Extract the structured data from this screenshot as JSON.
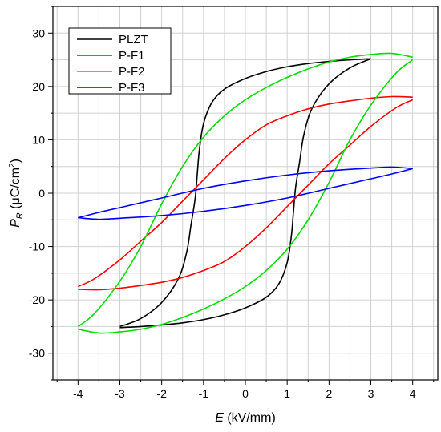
{
  "chart_data": {
    "type": "line",
    "xlabel": {
      "italic": "E",
      "rest": " (kV/mm)"
    },
    "ylabel": {
      "italic": "P",
      "sub": "R",
      "rest": " (μC/cm",
      "sup": "2",
      "close": ")"
    },
    "xlim": [
      -4.6,
      4.6
    ],
    "ylim": [
      -35,
      35
    ],
    "xticks": [
      -4,
      -3,
      -2,
      -1,
      0,
      1,
      2,
      3,
      4
    ],
    "yticks": [
      -30,
      -20,
      -10,
      0,
      10,
      20,
      30
    ],
    "grid": true,
    "legend_position": "top-left",
    "series": [
      {
        "name": "PLZT",
        "color": "#000000",
        "upper": {
          "x": [
            -3.0,
            -2.5,
            -2.0,
            -1.6,
            -1.4,
            -1.3,
            -1.2,
            -1.15,
            -1.1,
            -1.0,
            -0.8,
            -0.5,
            0.0,
            0.5,
            1.0,
            1.5,
            2.0,
            2.5,
            3.0
          ],
          "y": [
            -25.0,
            -23.5,
            -20.5,
            -16.0,
            -11.0,
            -6.0,
            -1.0,
            3.5,
            8.0,
            13.0,
            17.0,
            19.5,
            21.5,
            22.8,
            23.7,
            24.3,
            24.7,
            25.0,
            25.2
          ]
        },
        "lower": {
          "x": [
            3.0,
            2.5,
            2.0,
            1.6,
            1.4,
            1.3,
            1.2,
            1.15,
            1.1,
            1.0,
            0.8,
            0.5,
            0.0,
            -0.5,
            -1.0,
            -1.5,
            -2.0,
            -2.5,
            -3.0
          ],
          "y": [
            25.2,
            23.5,
            20.5,
            16.0,
            11.0,
            6.0,
            1.0,
            -3.5,
            -8.0,
            -13.0,
            -17.0,
            -19.5,
            -21.5,
            -22.8,
            -23.7,
            -24.3,
            -24.7,
            -25.0,
            -25.2
          ]
        }
      },
      {
        "name": "P-F1",
        "color": "#ff0000",
        "upper": {
          "x": [
            -4.0,
            -3.6,
            -3.0,
            -2.5,
            -2.0,
            -1.5,
            -1.0,
            -0.5,
            0.0,
            0.5,
            1.0,
            1.5,
            2.0,
            2.5,
            3.0,
            3.5,
            4.0
          ],
          "y": [
            -17.5,
            -16.0,
            -12.5,
            -9.0,
            -5.5,
            -1.5,
            2.5,
            6.5,
            10.0,
            12.8,
            14.5,
            15.8,
            16.7,
            17.3,
            17.8,
            18.1,
            18.0
          ]
        },
        "lower": {
          "x": [
            4.0,
            3.6,
            3.0,
            2.5,
            2.0,
            1.5,
            1.0,
            0.5,
            0.0,
            -0.5,
            -1.0,
            -1.5,
            -2.0,
            -2.5,
            -3.0,
            -3.5,
            -4.0
          ],
          "y": [
            17.5,
            16.0,
            12.5,
            9.0,
            5.5,
            1.5,
            -2.5,
            -6.5,
            -10.0,
            -12.8,
            -14.5,
            -15.8,
            -16.7,
            -17.3,
            -17.8,
            -18.1,
            -18.0
          ]
        }
      },
      {
        "name": "P-F2",
        "color": "#00dd00",
        "upper": {
          "x": [
            -4.0,
            -3.6,
            -3.0,
            -2.5,
            -2.0,
            -1.5,
            -1.0,
            -0.5,
            0.0,
            0.5,
            1.0,
            1.5,
            2.0,
            2.5,
            3.0,
            3.5,
            4.0
          ],
          "y": [
            -25.0,
            -22.5,
            -16.5,
            -10.0,
            -2.0,
            5.0,
            10.5,
            14.5,
            17.5,
            19.8,
            21.7,
            23.3,
            24.6,
            25.5,
            26.0,
            26.2,
            25.5
          ]
        },
        "lower": {
          "x": [
            4.0,
            3.6,
            3.0,
            2.5,
            2.0,
            1.5,
            1.0,
            0.5,
            0.0,
            -0.5,
            -1.0,
            -1.5,
            -2.0,
            -2.5,
            -3.0,
            -3.5,
            -4.0
          ],
          "y": [
            25.0,
            22.5,
            16.5,
            10.0,
            2.0,
            -5.0,
            -10.5,
            -14.5,
            -17.5,
            -19.8,
            -21.7,
            -23.3,
            -24.6,
            -25.5,
            -26.0,
            -26.2,
            -25.5
          ]
        }
      },
      {
        "name": "P-F3",
        "color": "#0000ff",
        "upper": {
          "x": [
            -4.0,
            -3.5,
            -3.0,
            -2.0,
            -1.0,
            0.0,
            1.0,
            2.0,
            3.0,
            3.5,
            4.0
          ],
          "y": [
            -4.6,
            -3.6,
            -2.7,
            -0.9,
            0.9,
            2.3,
            3.4,
            4.2,
            4.7,
            4.9,
            4.6
          ]
        },
        "lower": {
          "x": [
            4.0,
            3.5,
            3.0,
            2.0,
            1.0,
            0.0,
            -1.0,
            -2.0,
            -3.0,
            -3.5,
            -4.0
          ],
          "y": [
            4.6,
            3.6,
            2.7,
            0.9,
            -0.9,
            -2.3,
            -3.4,
            -4.2,
            -4.7,
            -4.9,
            -4.6
          ]
        }
      }
    ]
  }
}
